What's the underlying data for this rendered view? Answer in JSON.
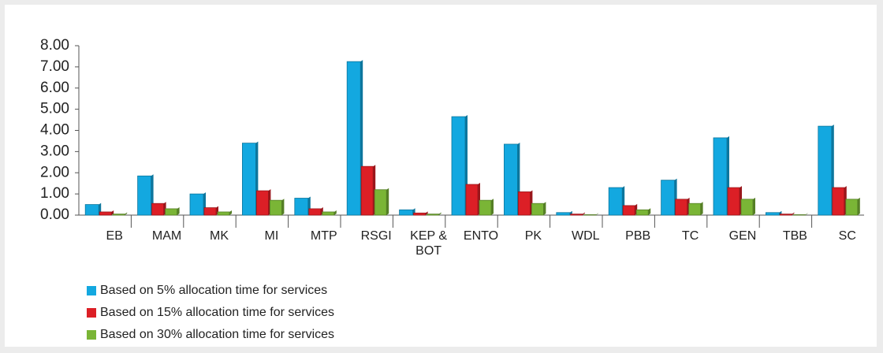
{
  "chart_data": {
    "type": "bar",
    "categories": [
      "EB",
      "MAM",
      "MK",
      "MI",
      "MTP",
      "RSGI",
      "KEP & BOT",
      "ENTO",
      "PK",
      "WDL",
      "PBB",
      "TC",
      "GEN",
      "TBB",
      "SC"
    ],
    "series": [
      {
        "name": "Based on 5% allocation time for services",
        "color": "#13a8e0",
        "values": [
          0.5,
          1.85,
          1.0,
          3.4,
          0.8,
          7.25,
          0.25,
          4.65,
          3.35,
          0.12,
          1.3,
          1.65,
          3.65,
          0.12,
          4.2
        ]
      },
      {
        "name": "Based on 15% allocation time for services",
        "color": "#dc1f26",
        "values": [
          0.15,
          0.55,
          0.35,
          1.15,
          0.3,
          2.3,
          0.1,
          1.45,
          1.1,
          0.05,
          0.45,
          0.75,
          1.3,
          0.05,
          1.3
        ]
      },
      {
        "name": "Based on 30% allocation time for services",
        "color": "#7ab536",
        "values": [
          0.05,
          0.3,
          0.15,
          0.7,
          0.15,
          1.2,
          0.05,
          0.7,
          0.55,
          0.02,
          0.25,
          0.55,
          0.75,
          0.02,
          0.75
        ]
      }
    ],
    "ylim": [
      0,
      8
    ],
    "yticks": [
      {
        "value": 0,
        "label": "0.00"
      },
      {
        "value": 1,
        "label": "1.00"
      },
      {
        "value": 2,
        "label": "2.00"
      },
      {
        "value": 3,
        "label": "3.00"
      },
      {
        "value": 4,
        "label": "4.00"
      },
      {
        "value": 5,
        "label": "5.00"
      },
      {
        "value": 6,
        "label": "6.00"
      },
      {
        "value": 7,
        "label": "7.00"
      },
      {
        "value": 8,
        "label": "8.00"
      }
    ],
    "legend": "bottom-left"
  }
}
